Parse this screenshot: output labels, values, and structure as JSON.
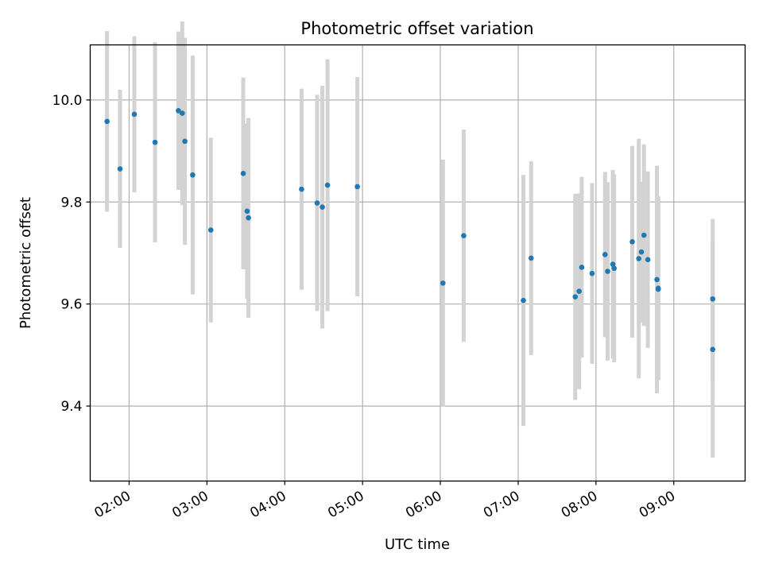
{
  "chart_data": {
    "type": "scatter",
    "title": "Photometric offset variation",
    "xlabel": "UTC time",
    "ylabel": "Photometric offset",
    "x_axis_type": "time",
    "xlim": [
      "01:30",
      "09:55"
    ],
    "ylim": [
      9.253,
      10.108
    ],
    "grid": true,
    "x_ticks": [
      "02:00",
      "03:00",
      "04:00",
      "05:00",
      "06:00",
      "07:00",
      "08:00",
      "09:00"
    ],
    "y_ticks": [
      "9.4",
      "9.6",
      "9.8",
      "10.0"
    ],
    "colors": {
      "marker": "#1f77b4",
      "errorbar": "#d3d3d3"
    },
    "points": [
      {
        "t": "01:43",
        "y": 9.958,
        "err": 0.177
      },
      {
        "t": "01:53",
        "y": 9.865,
        "err": 0.155
      },
      {
        "t": "02:04",
        "y": 9.972,
        "err": 0.153
      },
      {
        "t": "02:20",
        "y": 9.917,
        "err": 0.196
      },
      {
        "t": "02:38",
        "y": 9.979,
        "err": 0.155
      },
      {
        "t": "02:41",
        "y": 9.974,
        "err": 0.18
      },
      {
        "t": "02:43",
        "y": 9.919,
        "err": 0.203
      },
      {
        "t": "02:49",
        "y": 9.853,
        "err": 0.234
      },
      {
        "t": "03:03",
        "y": 9.745,
        "err": 0.181
      },
      {
        "t": "03:28",
        "y": 9.856,
        "err": 0.188
      },
      {
        "t": "03:31",
        "y": 9.782,
        "err": 0.172
      },
      {
        "t": "03:32",
        "y": 9.769,
        "err": 0.196
      },
      {
        "t": "04:13",
        "y": 9.825,
        "err": 0.197
      },
      {
        "t": "04:25",
        "y": 9.798,
        "err": 0.212
      },
      {
        "t": "04:29",
        "y": 9.79,
        "err": 0.238
      },
      {
        "t": "04:33",
        "y": 9.833,
        "err": 0.247
      },
      {
        "t": "04:56",
        "y": 9.83,
        "err": 0.215
      },
      {
        "t": "06:02",
        "y": 9.641,
        "err": 0.242
      },
      {
        "t": "06:18",
        "y": 9.734,
        "err": 0.208
      },
      {
        "t": "07:04",
        "y": 9.607,
        "err": 0.246
      },
      {
        "t": "07:10",
        "y": 9.69,
        "err": 0.19
      },
      {
        "t": "07:44",
        "y": 9.614,
        "err": 0.202
      },
      {
        "t": "07:47",
        "y": 9.625,
        "err": 0.192
      },
      {
        "t": "07:49",
        "y": 9.672,
        "err": 0.177
      },
      {
        "t": "07:57",
        "y": 9.66,
        "err": 0.177
      },
      {
        "t": "08:07",
        "y": 9.697,
        "err": 0.162
      },
      {
        "t": "08:09",
        "y": 9.664,
        "err": 0.175
      },
      {
        "t": "08:13",
        "y": 9.678,
        "err": 0.185
      },
      {
        "t": "08:14",
        "y": 9.67,
        "err": 0.184
      },
      {
        "t": "08:28",
        "y": 9.722,
        "err": 0.188
      },
      {
        "t": "08:33",
        "y": 9.689,
        "err": 0.235
      },
      {
        "t": "08:35",
        "y": 9.702,
        "err": 0.138
      },
      {
        "t": "08:37",
        "y": 9.735,
        "err": 0.178
      },
      {
        "t": "08:40",
        "y": 9.687,
        "err": 0.173
      },
      {
        "t": "08:47",
        "y": 9.648,
        "err": 0.223
      },
      {
        "t": "08:48",
        "y": 9.629,
        "err": 0.178
      },
      {
        "t": "08:48",
        "y": 9.631,
        "err": 0.18
      },
      {
        "t": "09:30",
        "y": 9.61,
        "err": 0.157
      },
      {
        "t": "09:30",
        "y": 9.511,
        "err": 0.212
      }
    ]
  }
}
